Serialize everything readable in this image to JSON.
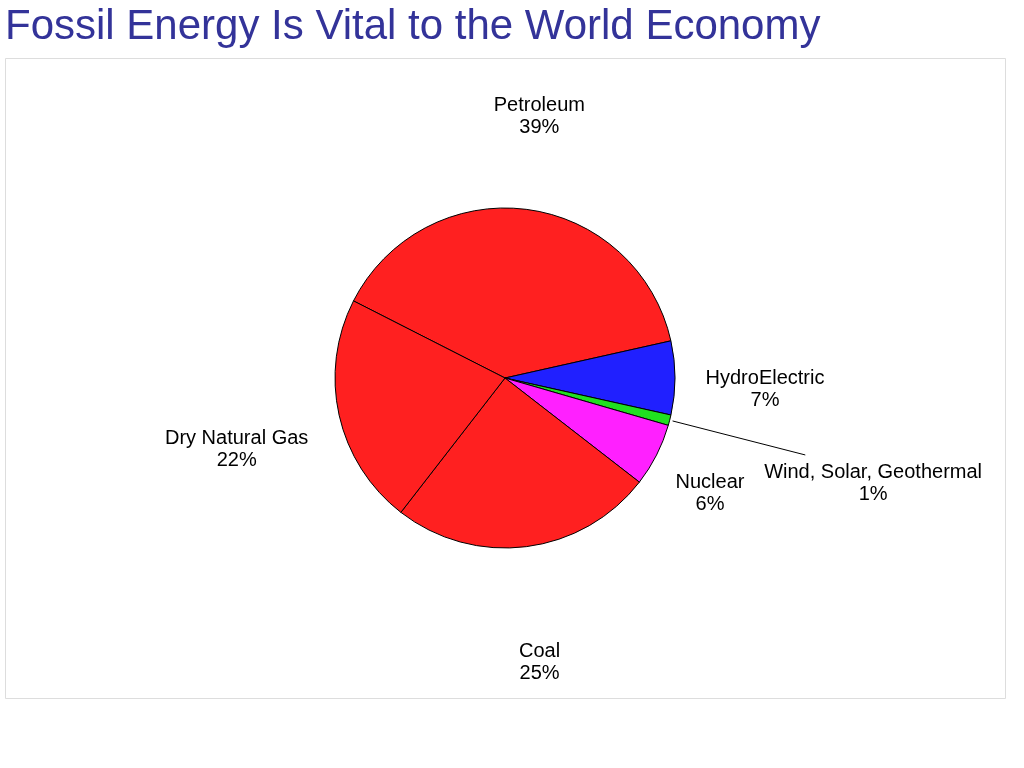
{
  "chart_data": {
    "type": "pie",
    "title": "Fossil Energy Is Vital to the World Economy",
    "categories": [
      "Petroleum",
      "HydroElectric",
      "Wind, Solar, Geothermal",
      "Nuclear",
      "Coal",
      "Dry Natural Gas"
    ],
    "values": [
      39,
      7,
      1,
      6,
      25,
      22
    ],
    "value_labels": [
      "39%",
      "7%",
      "1%",
      "6%",
      "25%",
      "22%"
    ],
    "colors": [
      "#ff2020",
      "#2020ff",
      "#20e020",
      "#ff20ff",
      "#ff2020",
      "#ff2020"
    ],
    "legend": false
  }
}
